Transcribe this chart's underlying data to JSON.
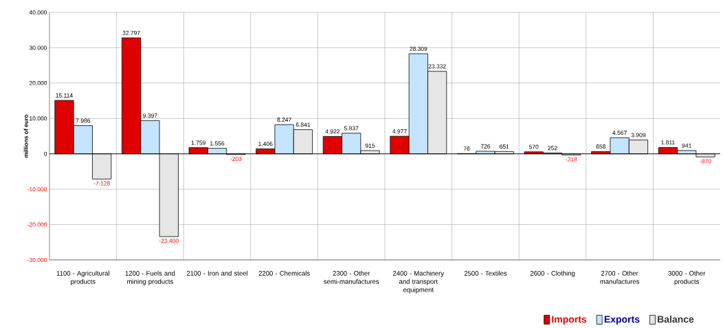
{
  "chart_data": {
    "type": "bar",
    "ylabel": "millions of euro",
    "categories": [
      "1100 - Agricultural products",
      "1200 - Fuels and mining products",
      "2100 - Iron and steel",
      "2200 - Chemicals",
      "2300 - Other semi-manufactures",
      "2400 - Machinery and transport equipment",
      "2500 - Textiles",
      "2600 - Clothing",
      "2700 - Other manufactures",
      "3000 - Other products"
    ],
    "series": [
      {
        "name": "Imports",
        "color": "#e00000",
        "values": [
          15114,
          32797,
          1759,
          1406,
          4922,
          4977,
          76,
          570,
          658,
          1811
        ],
        "value_labels": [
          "15.114",
          "32.797",
          "1.759",
          "1.406",
          "4.922",
          "4.977",
          "76",
          "570",
          "658",
          "1.811"
        ]
      },
      {
        "name": "Exports",
        "color": "#c4e4ff",
        "values": [
          7986,
          9397,
          1556,
          8247,
          5837,
          28309,
          726,
          252,
          4567,
          941
        ],
        "value_labels": [
          "7.986",
          "9.397",
          "1.556",
          "8.247",
          "5.837",
          "28.309",
          "726",
          "252",
          "4.567",
          "941"
        ]
      },
      {
        "name": "Balance",
        "color": "#e6e6e6",
        "values": [
          -7128,
          -23400,
          -203,
          6841,
          915,
          23332,
          651,
          -318,
          3909,
          -870
        ],
        "value_labels": [
          "-7.128",
          "-23.400",
          "-203",
          "6.841",
          "915",
          "23.332",
          "651",
          "-318",
          "3.909",
          "-870"
        ]
      }
    ],
    "ylim": [
      -30000,
      40000
    ],
    "yticks": [
      {
        "value": -30000,
        "label": "-30.000"
      },
      {
        "value": -20000,
        "label": "-20.000"
      },
      {
        "value": -10000,
        "label": "-10.000"
      },
      {
        "value": 0,
        "label": "0"
      },
      {
        "value": 10000,
        "label": "10.000"
      },
      {
        "value": 20000,
        "label": "20.000"
      },
      {
        "value": 30000,
        "label": "30.000"
      },
      {
        "value": 40000,
        "label": "40.000"
      }
    ],
    "grid": true,
    "legend": "bottom right"
  }
}
